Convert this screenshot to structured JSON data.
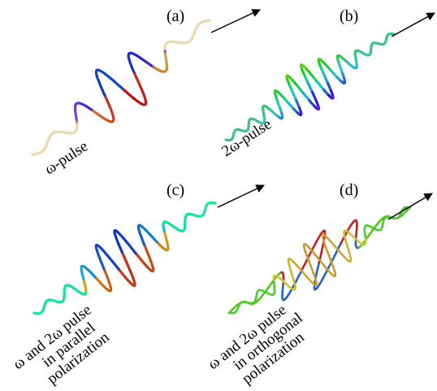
{
  "panels": [
    {
      "label": "(a)",
      "caption": [
        "ω-pulse"
      ]
    },
    {
      "label": "(b)",
      "caption": [
        "2ω-pulse"
      ]
    },
    {
      "label": "(c)",
      "caption": [
        "ω and 2ω pulse",
        "in parallel",
        "polarization"
      ]
    },
    {
      "label": "(d)",
      "caption": [
        "ω and 2ω pulse",
        "in orthogonal",
        "polarization"
      ]
    }
  ]
}
